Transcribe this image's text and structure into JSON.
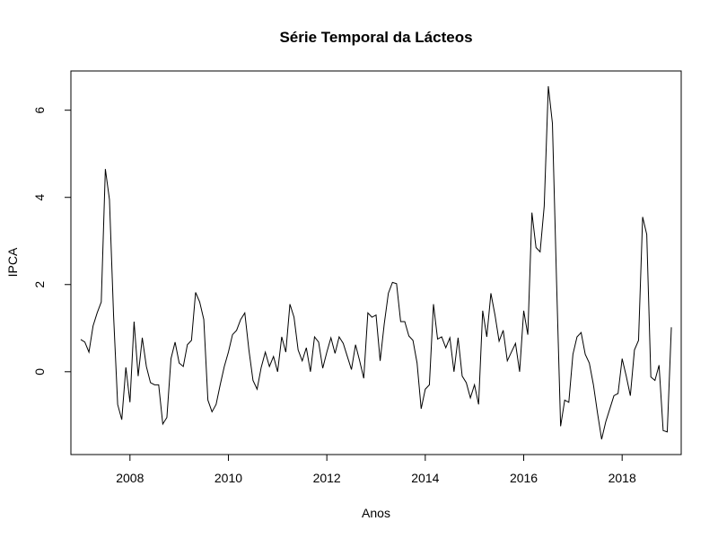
{
  "chart_data": {
    "type": "line",
    "title": "Série Temporal da Lácteos",
    "xlabel": "Anos",
    "ylabel": "IPCA",
    "xlim": [
      2006.8,
      2019.2
    ],
    "ylim": [
      -1.9,
      6.9
    ],
    "x_ticks": [
      2008,
      2010,
      2012,
      2014,
      2016,
      2018
    ],
    "x_tick_labels": [
      "2008",
      "2010",
      "2012",
      "2014",
      "2016",
      "2018"
    ],
    "y_ticks": [
      0,
      2,
      4,
      6
    ],
    "y_tick_labels": [
      "0",
      "2",
      "4",
      "6"
    ],
    "grid": false,
    "line_color": "#000000",
    "series": [
      {
        "x_start": 2007.0,
        "x_step": 0.0833333,
        "values": [
          0.74,
          0.68,
          0.45,
          1.05,
          1.35,
          1.6,
          4.65,
          3.95,
          1.3,
          -0.75,
          -1.1,
          0.1,
          -0.7,
          1.15,
          -0.1,
          0.78,
          0.12,
          -0.25,
          -0.3,
          -0.3,
          -1.2,
          -1.05,
          0.3,
          0.68,
          0.2,
          0.12,
          0.62,
          0.72,
          1.82,
          1.6,
          1.2,
          -0.65,
          -0.92,
          -0.75,
          -0.3,
          0.12,
          0.45,
          0.85,
          0.95,
          1.2,
          1.35,
          0.5,
          -0.2,
          -0.4,
          0.1,
          0.45,
          0.12,
          0.35,
          0.0,
          0.8,
          0.45,
          1.55,
          1.25,
          0.5,
          0.25,
          0.55,
          0.0,
          0.8,
          0.68,
          0.08,
          0.45,
          0.78,
          0.42,
          0.8,
          0.65,
          0.35,
          0.05,
          0.62,
          0.25,
          -0.15,
          1.35,
          1.25,
          1.3,
          0.25,
          1.1,
          1.8,
          2.05,
          2.02,
          1.15,
          1.15,
          0.82,
          0.72,
          0.2,
          -0.85,
          -0.4,
          -0.3,
          1.55,
          0.75,
          0.8,
          0.55,
          0.78,
          0.0,
          0.78,
          -0.1,
          -0.25,
          -0.6,
          -0.3,
          -0.75,
          1.4,
          0.8,
          1.8,
          1.3,
          0.7,
          0.95,
          0.25,
          0.45,
          0.65,
          0.0,
          1.4,
          0.85,
          3.65,
          2.85,
          2.75,
          3.8,
          6.55,
          5.7,
          2.1,
          -1.25,
          -0.65,
          -0.7,
          0.4,
          0.8,
          0.9,
          0.4,
          0.2,
          -0.3,
          -0.95,
          -1.55,
          -1.15,
          -0.85,
          -0.55,
          -0.5,
          0.3,
          -0.1,
          -0.55,
          0.5,
          0.72,
          3.55,
          3.15,
          -0.12,
          -0.2,
          0.15,
          -1.35,
          -1.38,
          1.02
        ]
      }
    ]
  }
}
